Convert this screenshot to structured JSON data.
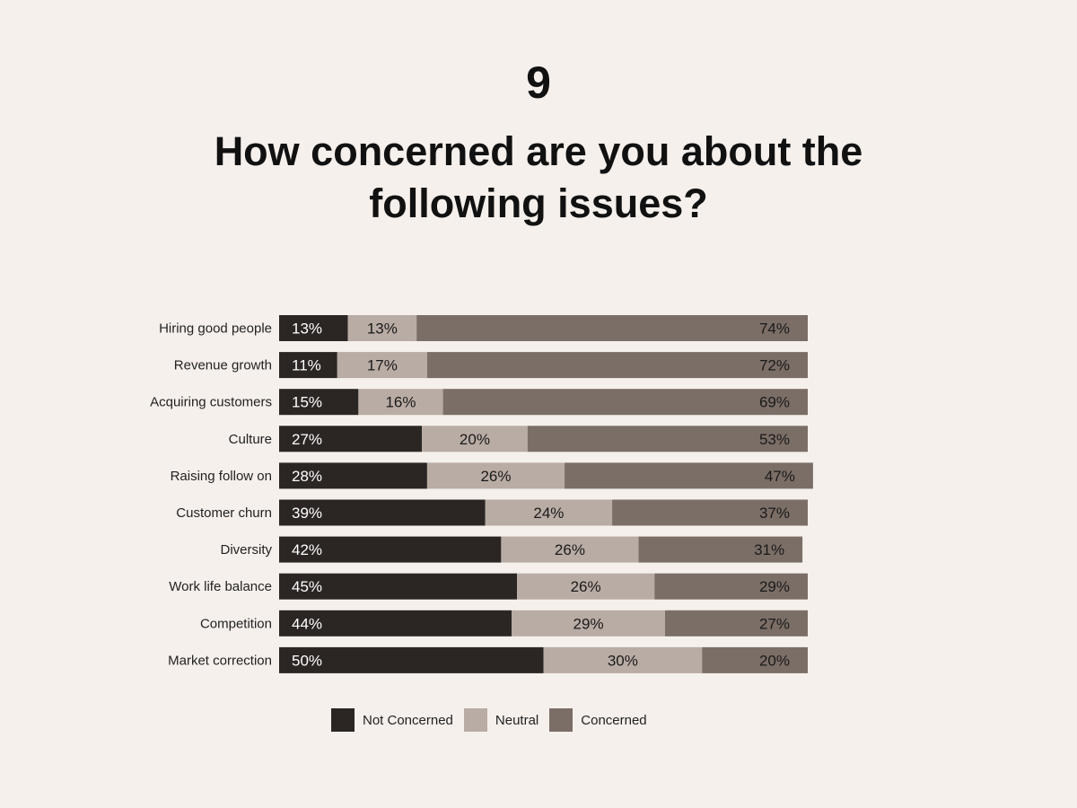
{
  "header": {
    "number": "9",
    "title_line1": "How concerned are you about the",
    "title_line2": "following issues?"
  },
  "colors": {
    "background": "#f5f0ec",
    "not_concerned": "#2b2624",
    "neutral": "#b9aca4",
    "concerned": "#7b6e66",
    "label_on_dark": "#ffffff",
    "label_on_light": "#1a1a1a"
  },
  "chart_data": {
    "type": "bar",
    "orientation": "horizontal",
    "stacked": true,
    "normalized": true,
    "categories": [
      "Hiring good people",
      "Revenue growth",
      "Acquiring customers",
      "Culture",
      "Raising follow on",
      "Customer churn",
      "Diversity",
      "Work life balance",
      "Competition",
      "Market correction"
    ],
    "series": [
      {
        "name": "Not Concerned",
        "values": [
          13,
          11,
          15,
          27,
          28,
          39,
          42,
          45,
          44,
          50
        ]
      },
      {
        "name": "Neutral",
        "values": [
          13,
          17,
          16,
          20,
          26,
          24,
          26,
          26,
          29,
          30
        ]
      },
      {
        "name": "Concerned",
        "values": [
          74,
          72,
          69,
          53,
          47,
          37,
          31,
          29,
          27,
          20
        ]
      }
    ],
    "value_suffix": "%",
    "xlim": [
      0,
      100
    ],
    "grid": false,
    "legend_position": "bottom"
  }
}
